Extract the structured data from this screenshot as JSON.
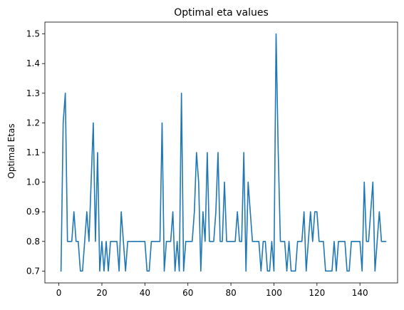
{
  "chart_data": {
    "type": "line",
    "title": "Optimal eta values",
    "xlabel": "",
    "ylabel": "Optimal Etas",
    "xlim": [
      -6.5,
      157.5
    ],
    "ylim": [
      0.66,
      1.54
    ],
    "xticks": [
      0,
      20,
      40,
      60,
      80,
      100,
      120,
      140
    ],
    "xtick_labels": [
      "0",
      "20",
      "40",
      "60",
      "80",
      "100",
      "120",
      "140"
    ],
    "yticks": [
      0.7,
      0.8,
      0.9,
      1.0,
      1.1,
      1.2,
      1.3,
      1.4,
      1.5
    ],
    "ytick_labels": [
      "0.7",
      "0.8",
      "0.9",
      "1.0",
      "1.1",
      "1.2",
      "1.3",
      "1.4",
      "1.5"
    ],
    "grid": false,
    "line_color": "#1f77b4",
    "series": [
      {
        "x_start": 1,
        "x_step": 1,
        "values": [
          0.7,
          1.2,
          1.3,
          0.8,
          0.8,
          0.8,
          0.9,
          0.8,
          0.8,
          0.7,
          0.7,
          0.8,
          0.9,
          0.8,
          1.0,
          1.2,
          0.8,
          1.1,
          0.7,
          0.8,
          0.7,
          0.8,
          0.7,
          0.8,
          0.8,
          0.8,
          0.8,
          0.7,
          0.9,
          0.8,
          0.7,
          0.8,
          0.8,
          0.8,
          0.8,
          0.8,
          0.8,
          0.8,
          0.8,
          0.8,
          0.7,
          0.7,
          0.8,
          0.8,
          0.8,
          0.8,
          0.8,
          1.2,
          0.7,
          0.8,
          0.8,
          0.8,
          0.9,
          0.7,
          0.8,
          0.7,
          1.3,
          0.7,
          0.8,
          0.8,
          0.8,
          0.8,
          0.9,
          1.1,
          1.0,
          0.7,
          0.9,
          0.8,
          1.1,
          0.8,
          0.8,
          0.8,
          0.9,
          1.1,
          0.8,
          0.8,
          1.0,
          0.8,
          0.8,
          0.8,
          0.8,
          0.8,
          0.9,
          0.8,
          0.8,
          1.1,
          0.7,
          1.0,
          0.9,
          0.8,
          0.8,
          0.8,
          0.8,
          0.7,
          0.8,
          0.8,
          0.7,
          0.7,
          0.8,
          0.7,
          1.5,
          1.1,
          0.8,
          0.8,
          0.8,
          0.7,
          0.8,
          0.7,
          0.7,
          0.7,
          0.8,
          0.8,
          0.8,
          0.9,
          0.7,
          0.8,
          0.9,
          0.8,
          0.9,
          0.9,
          0.8,
          0.8,
          0.8,
          0.7,
          0.7,
          0.7,
          0.7,
          0.8,
          0.7,
          0.8,
          0.8,
          0.8,
          0.8,
          0.7,
          0.7,
          0.8,
          0.8,
          0.8,
          0.8,
          0.8,
          0.7,
          1.0,
          0.8,
          0.8,
          0.9,
          1.0,
          0.7,
          0.8,
          0.9,
          0.8,
          0.8,
          0.8
        ]
      }
    ]
  }
}
